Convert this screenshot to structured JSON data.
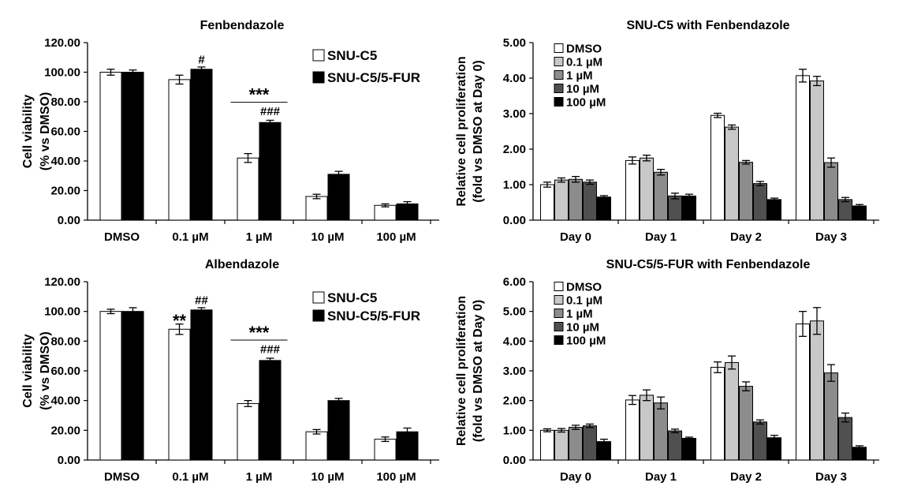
{
  "chart_data": [
    {
      "type": "bar",
      "title": "Fenbendazole",
      "ylabel_line1": "Cell viability",
      "ylabel_line2": "(% vs DMSO)",
      "ylim": [
        0,
        120
      ],
      "yticks": [
        "0.00",
        "20.00",
        "40.00",
        "60.00",
        "80.00",
        "100.00",
        "120.00"
      ],
      "categories": [
        "DMSO",
        "0.1 µM",
        "1 µM",
        "10 µM",
        "100 µM"
      ],
      "legend_position": "top-right",
      "series": [
        {
          "name": "SNU-C5",
          "values": [
            100,
            95,
            42,
            16,
            10
          ],
          "errors": [
            2,
            3,
            3,
            1.5,
            1
          ],
          "color": "#ffffff"
        },
        {
          "name": "SNU-C5/5-FUR",
          "values": [
            100,
            102,
            66,
            31,
            11
          ],
          "errors": [
            1.5,
            1.5,
            1.5,
            2,
            1.5
          ],
          "color": "#000000"
        }
      ],
      "annotations": [
        {
          "text": "#",
          "category": 1,
          "series": 1,
          "value": 106
        },
        {
          "text": "***",
          "category": 2,
          "series": -1,
          "value": 85,
          "underline": true
        },
        {
          "text": "###",
          "category": 2,
          "series": 1,
          "value": 71
        }
      ]
    },
    {
      "type": "bar",
      "title": "SNU-C5 with Fenbendazole",
      "ylabel_line1": "Relative cell proliferation",
      "ylabel_line2": "(fold vs DMSO at Day 0)",
      "ylim": [
        0,
        5
      ],
      "yticks": [
        "0.00",
        "1.00",
        "2.00",
        "3.00",
        "4.00",
        "5.00"
      ],
      "categories": [
        "Day 0",
        "Day 1",
        "Day 2",
        "Day 3"
      ],
      "legend_position": "top-left",
      "series": [
        {
          "name": "DMSO",
          "values": [
            1.0,
            1.68,
            2.95,
            4.07
          ],
          "errors": [
            0.07,
            0.1,
            0.06,
            0.18
          ],
          "color": "#ffffff"
        },
        {
          "name": "0.1 µM",
          "values": [
            1.13,
            1.75,
            2.62,
            3.92
          ],
          "errors": [
            0.06,
            0.08,
            0.06,
            0.13
          ],
          "color": "#c8c8c8"
        },
        {
          "name": "1 µM",
          "values": [
            1.15,
            1.35,
            1.63,
            1.62
          ],
          "errors": [
            0.08,
            0.08,
            0.05,
            0.13
          ],
          "color": "#8c8c8c"
        },
        {
          "name": "10 µM",
          "values": [
            1.07,
            0.68,
            1.03,
            0.58
          ],
          "errors": [
            0.06,
            0.08,
            0.06,
            0.06
          ],
          "color": "#505050"
        },
        {
          "name": "100 µM",
          "values": [
            0.65,
            0.68,
            0.58,
            0.4
          ],
          "errors": [
            0.04,
            0.05,
            0.04,
            0.04
          ],
          "color": "#000000"
        }
      ],
      "annotations": []
    },
    {
      "type": "bar",
      "title": "Albendazole",
      "ylabel_line1": "Cell viability",
      "ylabel_line2": "(% vs DMSO)",
      "ylim": [
        0,
        120
      ],
      "yticks": [
        "0.00",
        "20.00",
        "40.00",
        "60.00",
        "80.00",
        "100.00",
        "120.00"
      ],
      "categories": [
        "DMSO",
        "0.1 µM",
        "1 µM",
        "10 µM",
        "100 µM"
      ],
      "legend_position": "top-right",
      "series": [
        {
          "name": "SNU-C5",
          "values": [
            100,
            88,
            38,
            19,
            14
          ],
          "errors": [
            1.5,
            3.5,
            2,
            1.5,
            1.5
          ],
          "color": "#ffffff"
        },
        {
          "name": "SNU-C5/5-FUR",
          "values": [
            100,
            101,
            67,
            40,
            19
          ],
          "errors": [
            2.5,
            1.5,
            1.5,
            1.5,
            2.5
          ],
          "color": "#000000"
        }
      ],
      "annotations": [
        {
          "text": "**",
          "category": 1,
          "series": 0,
          "value": 94
        },
        {
          "text": "##",
          "category": 1,
          "series": 1,
          "value": 105
        },
        {
          "text": "***",
          "category": 2,
          "series": -1,
          "value": 86,
          "underline": true
        },
        {
          "text": "###",
          "category": 2,
          "series": 1,
          "value": 72
        }
      ]
    },
    {
      "type": "bar",
      "title": "SNU-C5/5-FUR with Fenbendazole",
      "ylabel_line1": "Relative cell proliferation",
      "ylabel_line2": "(fold vs DMSO at Day 0)",
      "ylim": [
        0,
        6
      ],
      "yticks": [
        "0.00",
        "1.00",
        "2.00",
        "3.00",
        "4.00",
        "5.00",
        "6.00"
      ],
      "categories": [
        "Day 0",
        "Day 1",
        "Day 2",
        "Day 3"
      ],
      "legend_position": "top-left",
      "series": [
        {
          "name": "DMSO",
          "values": [
            1.0,
            2.02,
            3.12,
            4.58
          ],
          "errors": [
            0.05,
            0.15,
            0.18,
            0.42
          ],
          "color": "#ffffff"
        },
        {
          "name": "0.1 µM",
          "values": [
            1.0,
            2.18,
            3.28,
            4.68
          ],
          "errors": [
            0.06,
            0.18,
            0.22,
            0.45
          ],
          "color": "#c8c8c8"
        },
        {
          "name": "1 µM",
          "values": [
            1.1,
            1.92,
            2.48,
            2.93
          ],
          "errors": [
            0.07,
            0.2,
            0.15,
            0.28
          ],
          "color": "#8c8c8c"
        },
        {
          "name": "10 µM",
          "values": [
            1.15,
            0.98,
            1.28,
            1.43
          ],
          "errors": [
            0.06,
            0.06,
            0.07,
            0.15
          ],
          "color": "#505050"
        },
        {
          "name": "100 µM",
          "values": [
            0.62,
            0.73,
            0.75,
            0.43
          ],
          "errors": [
            0.08,
            0.04,
            0.08,
            0.05
          ],
          "color": "#000000"
        }
      ],
      "annotations": []
    }
  ]
}
